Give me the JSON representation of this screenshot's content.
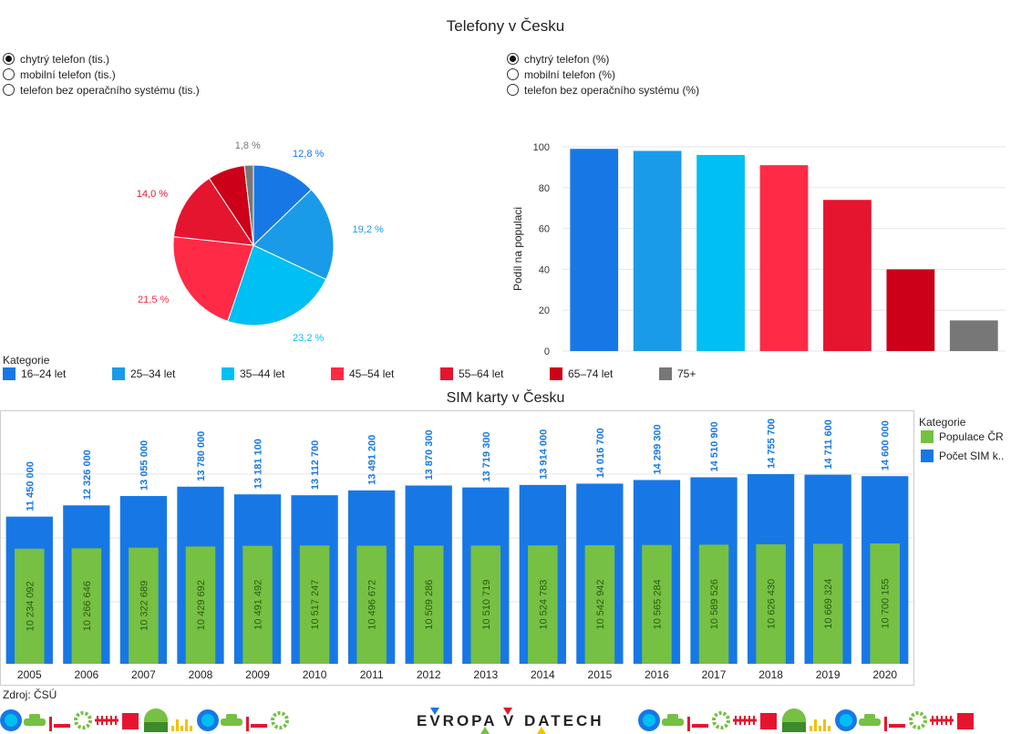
{
  "header": {
    "title": "Telefony v Česku"
  },
  "left_radios": [
    {
      "label": "chytrý telefon (tis.)",
      "selected": true
    },
    {
      "label": "mobilní telefon (tis.)",
      "selected": false
    },
    {
      "label": "telefon bez operačního systému (tis.)",
      "selected": false
    }
  ],
  "right_radios": [
    {
      "label": "chytrý telefon (%)",
      "selected": true
    },
    {
      "label": "mobilní telefon (%)",
      "selected": false
    },
    {
      "label": "telefon bez operačního systému (%)",
      "selected": false
    }
  ],
  "legend": {
    "title": "Kategorie",
    "items": [
      {
        "label": "16–24 let",
        "color": "#1778e5"
      },
      {
        "label": "25–34 let",
        "color": "#1a9bea"
      },
      {
        "label": "35–44 let",
        "color": "#00bff2"
      },
      {
        "label": "45–54 let",
        "color": "#ff2a45"
      },
      {
        "label": "55–64 let",
        "color": "#e5152f"
      },
      {
        "label": "65–74 let",
        "color": "#cc0018"
      },
      {
        "label": "75+",
        "color": "#777777"
      }
    ]
  },
  "sim": {
    "title": "SIM karty v Česku",
    "legend_title": "Kategorie",
    "legend": [
      {
        "label": "Populace ČR",
        "color": "#76c043"
      },
      {
        "label": "Počet SIM k..",
        "color": "#1778e5"
      }
    ]
  },
  "footer": {
    "source": "Zdroj: ČSÚ",
    "logo_left": "EVROPA",
    "logo_mid": "V",
    "logo_right": "DATECH"
  },
  "chart_data": [
    {
      "type": "pie",
      "labels": [
        "16–24 let",
        "25–34 let",
        "35–44 let",
        "45–54 let",
        "55–64 let",
        "65–74 let",
        "75+"
      ],
      "values": [
        12.8,
        19.2,
        23.2,
        21.5,
        14.0,
        7.5,
        1.8
      ],
      "data_labels": [
        "12,8 %",
        "19,2 %",
        "23,2 %",
        "21,5 %",
        "14,0 %",
        "",
        "1,8 %"
      ],
      "colors": [
        "#1778e5",
        "#1a9bea",
        "#00bff2",
        "#ff2a45",
        "#e5152f",
        "#cc0018",
        "#777777"
      ]
    },
    {
      "type": "bar",
      "categories": [
        "16–24 let",
        "25–34 let",
        "35–44 let",
        "45–54 let",
        "55–64 let",
        "65–74 let",
        "75+"
      ],
      "values": [
        99,
        98,
        96,
        91,
        74,
        40,
        15
      ],
      "ylabel": "Podíl na populaci",
      "ylim": [
        0,
        100
      ],
      "yticks": [
        0,
        20,
        40,
        60,
        80,
        100
      ],
      "colors": [
        "#1778e5",
        "#1a9bea",
        "#00bff2",
        "#ff2a45",
        "#e5152f",
        "#cc0018",
        "#777777"
      ]
    },
    {
      "type": "bar",
      "title": "SIM karty v Česku",
      "categories": [
        "2005",
        "2006",
        "2007",
        "2008",
        "2009",
        "2010",
        "2011",
        "2012",
        "2013",
        "2014",
        "2015",
        "2016",
        "2017",
        "2018",
        "2019",
        "2020"
      ],
      "series": [
        {
          "name": "Počet SIM k..",
          "color": "#1778e5",
          "values": [
            11450000,
            12326000,
            13055000,
            13780000,
            13181100,
            13112700,
            13491200,
            13870300,
            13719300,
            13914000,
            14016700,
            14299300,
            14510900,
            14755700,
            14711600,
            14600000
          ],
          "labels": [
            "11 450 000",
            "12 326 000",
            "13 055 000",
            "13 780 000",
            "13 181 100",
            "13 112 700",
            "13 491 200",
            "13 870 300",
            "13 719 300",
            "13 914 000",
            "14 016 700",
            "14 299 300",
            "14 510 900",
            "14 755 700",
            "14 711 600",
            "14 600 000"
          ]
        },
        {
          "name": "Populace ČR",
          "color": "#76c043",
          "values": [
            10234092,
            10266646,
            10322689,
            10429692,
            10491492,
            10517247,
            10496672,
            10509286,
            10510719,
            10524783,
            10542942,
            10565284,
            10589526,
            10626430,
            10669324,
            10700155
          ],
          "labels": [
            "10 234 092",
            "10 266 646",
            "10 322 689",
            "10 429 692",
            "10 491 492",
            "10 517 247",
            "10 496 672",
            "10 509 286",
            "10 510 719",
            "10 524 783",
            "10 542 942",
            "10 565 284",
            "10 589 526",
            "10 626 430",
            "10 669 324",
            "10 700 155"
          ]
        }
      ],
      "grid": true
    }
  ]
}
